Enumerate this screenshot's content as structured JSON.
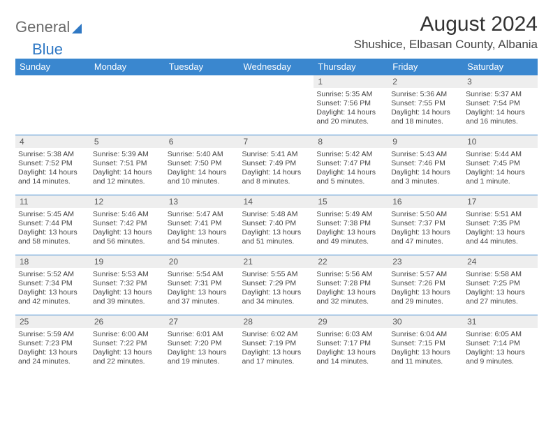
{
  "logo": {
    "part1": "General",
    "part2": "Blue"
  },
  "title": "August 2024",
  "subtitle": "Shushice, Elbasan County, Albania",
  "colors": {
    "header_bg": "#3a87cf",
    "header_fg": "#ffffff",
    "daynum_bg": "#eeeeee",
    "rule": "#3a87cf",
    "logo_gray": "#6b6b6b",
    "logo_blue": "#2f78c4"
  },
  "typography": {
    "title_fontsize": 30,
    "subtitle_fontsize": 17,
    "dayhdr_fontsize": 13,
    "cell_fontsize": 10.5
  },
  "day_headers": [
    "Sunday",
    "Monday",
    "Tuesday",
    "Wednesday",
    "Thursday",
    "Friday",
    "Saturday"
  ],
  "weeks": [
    [
      null,
      null,
      null,
      null,
      {
        "n": "1",
        "sr": "5:35 AM",
        "ss": "7:56 PM",
        "dl": "14 hours and 20 minutes."
      },
      {
        "n": "2",
        "sr": "5:36 AM",
        "ss": "7:55 PM",
        "dl": "14 hours and 18 minutes."
      },
      {
        "n": "3",
        "sr": "5:37 AM",
        "ss": "7:54 PM",
        "dl": "14 hours and 16 minutes."
      }
    ],
    [
      {
        "n": "4",
        "sr": "5:38 AM",
        "ss": "7:52 PM",
        "dl": "14 hours and 14 minutes."
      },
      {
        "n": "5",
        "sr": "5:39 AM",
        "ss": "7:51 PM",
        "dl": "14 hours and 12 minutes."
      },
      {
        "n": "6",
        "sr": "5:40 AM",
        "ss": "7:50 PM",
        "dl": "14 hours and 10 minutes."
      },
      {
        "n": "7",
        "sr": "5:41 AM",
        "ss": "7:49 PM",
        "dl": "14 hours and 8 minutes."
      },
      {
        "n": "8",
        "sr": "5:42 AM",
        "ss": "7:47 PM",
        "dl": "14 hours and 5 minutes."
      },
      {
        "n": "9",
        "sr": "5:43 AM",
        "ss": "7:46 PM",
        "dl": "14 hours and 3 minutes."
      },
      {
        "n": "10",
        "sr": "5:44 AM",
        "ss": "7:45 PM",
        "dl": "14 hours and 1 minute."
      }
    ],
    [
      {
        "n": "11",
        "sr": "5:45 AM",
        "ss": "7:44 PM",
        "dl": "13 hours and 58 minutes."
      },
      {
        "n": "12",
        "sr": "5:46 AM",
        "ss": "7:42 PM",
        "dl": "13 hours and 56 minutes."
      },
      {
        "n": "13",
        "sr": "5:47 AM",
        "ss": "7:41 PM",
        "dl": "13 hours and 54 minutes."
      },
      {
        "n": "14",
        "sr": "5:48 AM",
        "ss": "7:40 PM",
        "dl": "13 hours and 51 minutes."
      },
      {
        "n": "15",
        "sr": "5:49 AM",
        "ss": "7:38 PM",
        "dl": "13 hours and 49 minutes."
      },
      {
        "n": "16",
        "sr": "5:50 AM",
        "ss": "7:37 PM",
        "dl": "13 hours and 47 minutes."
      },
      {
        "n": "17",
        "sr": "5:51 AM",
        "ss": "7:35 PM",
        "dl": "13 hours and 44 minutes."
      }
    ],
    [
      {
        "n": "18",
        "sr": "5:52 AM",
        "ss": "7:34 PM",
        "dl": "13 hours and 42 minutes."
      },
      {
        "n": "19",
        "sr": "5:53 AM",
        "ss": "7:32 PM",
        "dl": "13 hours and 39 minutes."
      },
      {
        "n": "20",
        "sr": "5:54 AM",
        "ss": "7:31 PM",
        "dl": "13 hours and 37 minutes."
      },
      {
        "n": "21",
        "sr": "5:55 AM",
        "ss": "7:29 PM",
        "dl": "13 hours and 34 minutes."
      },
      {
        "n": "22",
        "sr": "5:56 AM",
        "ss": "7:28 PM",
        "dl": "13 hours and 32 minutes."
      },
      {
        "n": "23",
        "sr": "5:57 AM",
        "ss": "7:26 PM",
        "dl": "13 hours and 29 minutes."
      },
      {
        "n": "24",
        "sr": "5:58 AM",
        "ss": "7:25 PM",
        "dl": "13 hours and 27 minutes."
      }
    ],
    [
      {
        "n": "25",
        "sr": "5:59 AM",
        "ss": "7:23 PM",
        "dl": "13 hours and 24 minutes."
      },
      {
        "n": "26",
        "sr": "6:00 AM",
        "ss": "7:22 PM",
        "dl": "13 hours and 22 minutes."
      },
      {
        "n": "27",
        "sr": "6:01 AM",
        "ss": "7:20 PM",
        "dl": "13 hours and 19 minutes."
      },
      {
        "n": "28",
        "sr": "6:02 AM",
        "ss": "7:19 PM",
        "dl": "13 hours and 17 minutes."
      },
      {
        "n": "29",
        "sr": "6:03 AM",
        "ss": "7:17 PM",
        "dl": "13 hours and 14 minutes."
      },
      {
        "n": "30",
        "sr": "6:04 AM",
        "ss": "7:15 PM",
        "dl": "13 hours and 11 minutes."
      },
      {
        "n": "31",
        "sr": "6:05 AM",
        "ss": "7:14 PM",
        "dl": "13 hours and 9 minutes."
      }
    ]
  ],
  "labels": {
    "sunrise": "Sunrise: ",
    "sunset": "Sunset: ",
    "daylight": "Daylight: "
  }
}
